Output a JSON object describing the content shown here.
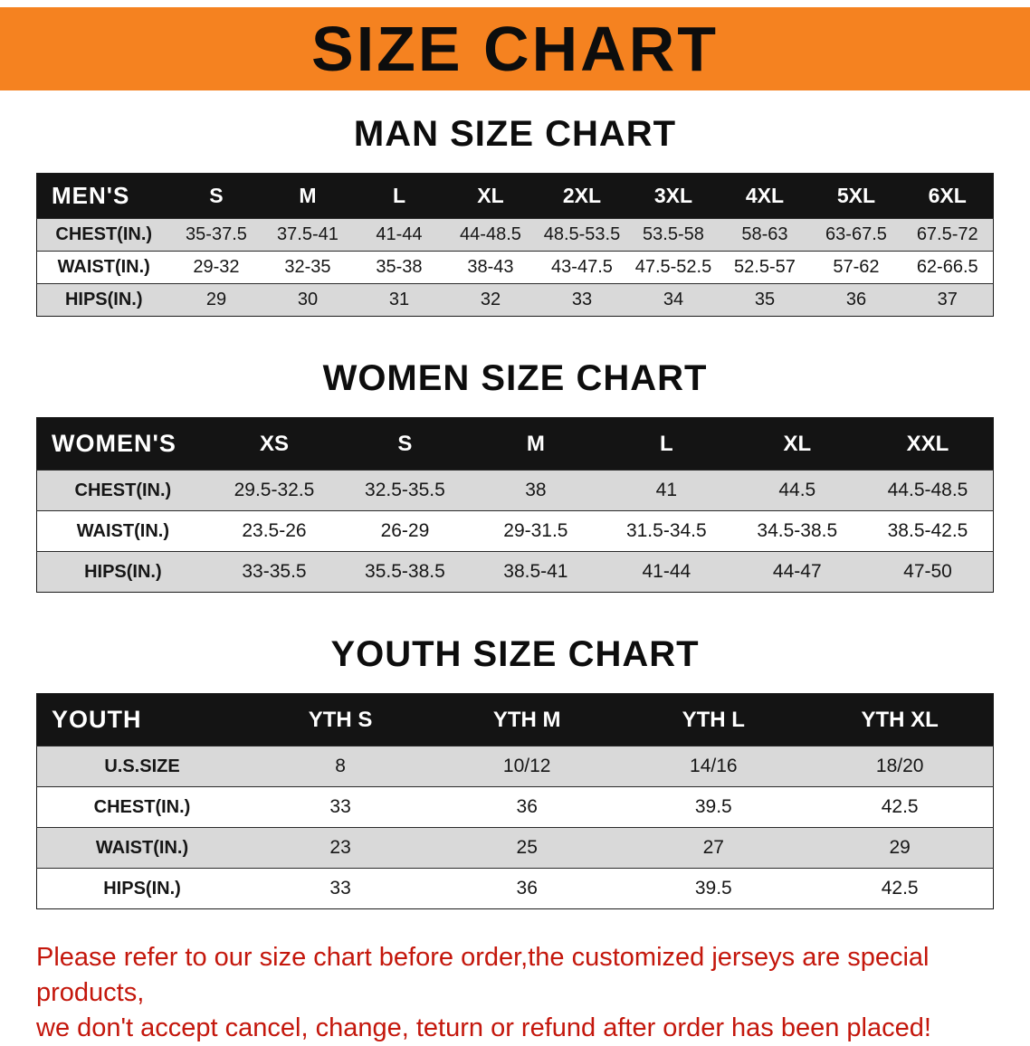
{
  "banner": {
    "title": "SIZE CHART"
  },
  "sections": [
    {
      "heading": "MAN SIZE CHART",
      "table": {
        "header": [
          "MEN'S",
          "S",
          "M",
          "L",
          "XL",
          "2XL",
          "3XL",
          "4XL",
          "5XL",
          "6XL"
        ],
        "rows": [
          [
            "CHEST(IN.)",
            "35-37.5",
            "37.5-41",
            "41-44",
            "44-48.5",
            "48.5-53.5",
            "53.5-58",
            "58-63",
            "63-67.5",
            "67.5-72"
          ],
          [
            "WAIST(IN.)",
            "29-32",
            "32-35",
            "35-38",
            "38-43",
            "43-47.5",
            "47.5-52.5",
            "52.5-57",
            "57-62",
            "62-66.5"
          ],
          [
            "HIPS(IN.)",
            "29",
            "30",
            "31",
            "32",
            "33",
            "34",
            "35",
            "36",
            "37"
          ]
        ]
      }
    },
    {
      "heading": "WOMEN SIZE CHART",
      "table": {
        "header": [
          "WOMEN'S",
          "XS",
          "S",
          "M",
          "L",
          "XL",
          "XXL"
        ],
        "rows": [
          [
            "CHEST(IN.)",
            "29.5-32.5",
            "32.5-35.5",
            "38",
            "41",
            "44.5",
            "44.5-48.5"
          ],
          [
            "WAIST(IN.)",
            "23.5-26",
            "26-29",
            "29-31.5",
            "31.5-34.5",
            "34.5-38.5",
            "38.5-42.5"
          ],
          [
            "HIPS(IN.)",
            "33-35.5",
            "35.5-38.5",
            "38.5-41",
            "41-44",
            "44-47",
            "47-50"
          ]
        ]
      }
    },
    {
      "heading": "YOUTH SIZE CHART",
      "table": {
        "header": [
          "YOUTH",
          "YTH S",
          "YTH M",
          "YTH L",
          "YTH XL"
        ],
        "rows": [
          [
            "U.S.SIZE",
            "8",
            "10/12",
            "14/16",
            "18/20"
          ],
          [
            "CHEST(IN.)",
            "33",
            "36",
            "39.5",
            "42.5"
          ],
          [
            "WAIST(IN.)",
            "23",
            "25",
            "27",
            "29"
          ],
          [
            "HIPS(IN.)",
            "33",
            "36",
            "39.5",
            "42.5"
          ]
        ]
      }
    }
  ],
  "disclaimer": {
    "line1": "Please refer to our size chart before order,the customized jerseys are special products,",
    "line2": "we don't accept cancel, change, teturn or refund after order has been placed!"
  },
  "colors": {
    "banner_bg": "#f58220",
    "header_bg": "#141414",
    "row_alt_bg": "#d9d9d9",
    "disclaimer_text": "#c4170c"
  }
}
